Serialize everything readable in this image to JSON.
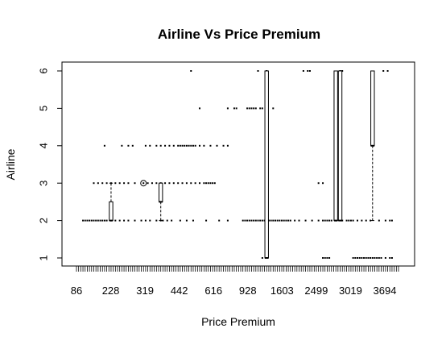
{
  "chart_data": {
    "type": "scatter",
    "title": "Airline Vs Price Premium",
    "xlabel": "Price Premium",
    "ylabel": "Airline",
    "ylim": [
      1,
      6
    ],
    "yticks": [
      "1",
      "2",
      "3",
      "4",
      "5",
      "6"
    ],
    "x_categories_labeled": [
      "86",
      "228",
      "319",
      "442",
      "616",
      "928",
      "1603",
      "2499",
      "3019",
      "3694"
    ],
    "x_category_count": 150,
    "points": [
      {
        "c": 4,
        "y": 2
      },
      {
        "c": 5,
        "y": 2
      },
      {
        "c": 6,
        "y": 2
      },
      {
        "c": 7,
        "y": 2
      },
      {
        "c": 8,
        "y": 2
      },
      {
        "c": 9,
        "y": 2
      },
      {
        "c": 10,
        "y": 2
      },
      {
        "c": 11,
        "y": 2
      },
      {
        "c": 12,
        "y": 2
      },
      {
        "c": 13,
        "y": 2
      },
      {
        "c": 14,
        "y": 2
      },
      {
        "c": 15,
        "y": 2
      },
      {
        "c": 17,
        "y": 2
      },
      {
        "c": 19,
        "y": 2
      },
      {
        "c": 21,
        "y": 2
      },
      {
        "c": 23,
        "y": 2
      },
      {
        "c": 25,
        "y": 2
      },
      {
        "c": 28,
        "y": 2
      },
      {
        "c": 31,
        "y": 2
      },
      {
        "c": 33,
        "y": 2
      },
      {
        "c": 35,
        "y": 2
      },
      {
        "c": 38,
        "y": 2
      },
      {
        "c": 40,
        "y": 2
      },
      {
        "c": 41,
        "y": 2
      },
      {
        "c": 43,
        "y": 2
      },
      {
        "c": 45,
        "y": 2
      },
      {
        "c": 49,
        "y": 2
      },
      {
        "c": 52,
        "y": 2
      },
      {
        "c": 55,
        "y": 2
      },
      {
        "c": 61,
        "y": 2
      },
      {
        "c": 67,
        "y": 2
      },
      {
        "c": 71,
        "y": 2
      },
      {
        "c": 78,
        "y": 2
      },
      {
        "c": 79,
        "y": 2
      },
      {
        "c": 80,
        "y": 2
      },
      {
        "c": 81,
        "y": 2
      },
      {
        "c": 82,
        "y": 2
      },
      {
        "c": 83,
        "y": 2
      },
      {
        "c": 84,
        "y": 2
      },
      {
        "c": 85,
        "y": 2
      },
      {
        "c": 86,
        "y": 2
      },
      {
        "c": 87,
        "y": 2
      },
      {
        "c": 88,
        "y": 2
      },
      {
        "c": 89,
        "y": 2
      },
      {
        "c": 90,
        "y": 2
      },
      {
        "c": 91,
        "y": 2
      },
      {
        "c": 92,
        "y": 2
      },
      {
        "c": 93,
        "y": 2
      },
      {
        "c": 94,
        "y": 2
      },
      {
        "c": 95,
        "y": 2
      },
      {
        "c": 96,
        "y": 2
      },
      {
        "c": 97,
        "y": 2
      },
      {
        "c": 98,
        "y": 2
      },
      {
        "c": 99,
        "y": 2
      },
      {
        "c": 100,
        "y": 2
      },
      {
        "c": 102,
        "y": 2
      },
      {
        "c": 104,
        "y": 2
      },
      {
        "c": 107,
        "y": 2
      },
      {
        "c": 110,
        "y": 2
      },
      {
        "c": 113,
        "y": 2
      },
      {
        "c": 115,
        "y": 2
      },
      {
        "c": 116,
        "y": 2
      },
      {
        "c": 117,
        "y": 2
      },
      {
        "c": 118,
        "y": 2
      },
      {
        "c": 119,
        "y": 2
      },
      {
        "c": 121,
        "y": 2
      },
      {
        "c": 124,
        "y": 2
      },
      {
        "c": 126,
        "y": 2
      },
      {
        "c": 127,
        "y": 2
      },
      {
        "c": 128,
        "y": 2
      },
      {
        "c": 129,
        "y": 2
      },
      {
        "c": 131,
        "y": 2
      },
      {
        "c": 133,
        "y": 2
      },
      {
        "c": 135,
        "y": 2
      },
      {
        "c": 137,
        "y": 2
      },
      {
        "c": 141,
        "y": 2
      },
      {
        "c": 144,
        "y": 2
      },
      {
        "c": 146,
        "y": 2
      },
      {
        "c": 147,
        "y": 2
      },
      {
        "c": 9,
        "y": 3
      },
      {
        "c": 11,
        "y": 3
      },
      {
        "c": 13,
        "y": 3
      },
      {
        "c": 15,
        "y": 3
      },
      {
        "c": 17,
        "y": 3
      },
      {
        "c": 19,
        "y": 3
      },
      {
        "c": 21,
        "y": 3
      },
      {
        "c": 23,
        "y": 3
      },
      {
        "c": 25,
        "y": 3
      },
      {
        "c": 28,
        "y": 3
      },
      {
        "c": 32,
        "y": 3
      },
      {
        "c": 34,
        "y": 3
      },
      {
        "c": 36,
        "y": 3
      },
      {
        "c": 38,
        "y": 3
      },
      {
        "c": 40,
        "y": 3
      },
      {
        "c": 42,
        "y": 3
      },
      {
        "c": 44,
        "y": 3
      },
      {
        "c": 46,
        "y": 3
      },
      {
        "c": 48,
        "y": 3
      },
      {
        "c": 50,
        "y": 3
      },
      {
        "c": 52,
        "y": 3
      },
      {
        "c": 54,
        "y": 3
      },
      {
        "c": 56,
        "y": 3
      },
      {
        "c": 58,
        "y": 3
      },
      {
        "c": 60,
        "y": 3
      },
      {
        "c": 61,
        "y": 3
      },
      {
        "c": 62,
        "y": 3
      },
      {
        "c": 63,
        "y": 3
      },
      {
        "c": 64,
        "y": 3
      },
      {
        "c": 65,
        "y": 3
      },
      {
        "c": 113,
        "y": 3
      },
      {
        "c": 115,
        "y": 3
      },
      {
        "c": 14,
        "y": 4
      },
      {
        "c": 22,
        "y": 4
      },
      {
        "c": 25,
        "y": 4
      },
      {
        "c": 27,
        "y": 4
      },
      {
        "c": 33,
        "y": 4
      },
      {
        "c": 35,
        "y": 4
      },
      {
        "c": 38,
        "y": 4
      },
      {
        "c": 40,
        "y": 4
      },
      {
        "c": 42,
        "y": 4
      },
      {
        "c": 44,
        "y": 4
      },
      {
        "c": 46,
        "y": 4
      },
      {
        "c": 48,
        "y": 4
      },
      {
        "c": 49,
        "y": 4
      },
      {
        "c": 50,
        "y": 4
      },
      {
        "c": 51,
        "y": 4
      },
      {
        "c": 52,
        "y": 4
      },
      {
        "c": 53,
        "y": 4
      },
      {
        "c": 54,
        "y": 4
      },
      {
        "c": 55,
        "y": 4
      },
      {
        "c": 56,
        "y": 4
      },
      {
        "c": 58,
        "y": 4
      },
      {
        "c": 60,
        "y": 4
      },
      {
        "c": 63,
        "y": 4
      },
      {
        "c": 66,
        "y": 4
      },
      {
        "c": 69,
        "y": 4
      },
      {
        "c": 71,
        "y": 4
      },
      {
        "c": 58,
        "y": 5
      },
      {
        "c": 71,
        "y": 5
      },
      {
        "c": 74,
        "y": 5
      },
      {
        "c": 75,
        "y": 5
      },
      {
        "c": 80,
        "y": 5
      },
      {
        "c": 81,
        "y": 5
      },
      {
        "c": 82,
        "y": 5
      },
      {
        "c": 83,
        "y": 5
      },
      {
        "c": 84,
        "y": 5
      },
      {
        "c": 86,
        "y": 5
      },
      {
        "c": 87,
        "y": 5
      },
      {
        "c": 92,
        "y": 5
      },
      {
        "c": 54,
        "y": 6
      },
      {
        "c": 85,
        "y": 6
      },
      {
        "c": 89,
        "y": 6
      },
      {
        "c": 106,
        "y": 6
      },
      {
        "c": 108,
        "y": 6
      },
      {
        "c": 109,
        "y": 6
      },
      {
        "c": 123,
        "y": 6
      },
      {
        "c": 124,
        "y": 6
      },
      {
        "c": 143,
        "y": 6
      },
      {
        "c": 145,
        "y": 6
      },
      {
        "c": 87,
        "y": 1
      },
      {
        "c": 115,
        "y": 1
      },
      {
        "c": 116,
        "y": 1
      },
      {
        "c": 117,
        "y": 1
      },
      {
        "c": 118,
        "y": 1
      },
      {
        "c": 129,
        "y": 1
      },
      {
        "c": 130,
        "y": 1
      },
      {
        "c": 131,
        "y": 1
      },
      {
        "c": 132,
        "y": 1
      },
      {
        "c": 133,
        "y": 1
      },
      {
        "c": 134,
        "y": 1
      },
      {
        "c": 135,
        "y": 1
      },
      {
        "c": 136,
        "y": 1
      },
      {
        "c": 137,
        "y": 1
      },
      {
        "c": 138,
        "y": 1
      },
      {
        "c": 139,
        "y": 1
      },
      {
        "c": 140,
        "y": 1
      },
      {
        "c": 141,
        "y": 1
      },
      {
        "c": 142,
        "y": 1
      },
      {
        "c": 144,
        "y": 1
      },
      {
        "c": 146,
        "y": 1
      },
      {
        "c": 147,
        "y": 1
      }
    ],
    "boxes": [
      {
        "c": 17,
        "min": 2,
        "q1": 2,
        "median": 2,
        "q3": 2.5,
        "max": 3
      },
      {
        "c": 40,
        "min": 2,
        "q1": 2.5,
        "median": 2.5,
        "q3": 3,
        "max": 3
      },
      {
        "c": 89,
        "min": 1,
        "q1": 1,
        "median": 1,
        "q3": 6,
        "max": 6
      },
      {
        "c": 121,
        "min": 2,
        "q1": 2,
        "median": 2,
        "q3": 6,
        "max": 6
      },
      {
        "c": 123,
        "min": 2,
        "q1": 2,
        "median": 2,
        "q3": 6,
        "max": 6
      },
      {
        "c": 138,
        "min": 2,
        "q1": 4,
        "median": 4,
        "q3": 6,
        "max": 6
      }
    ],
    "outliers": [
      {
        "c": 32,
        "y": 3
      }
    ],
    "grid": false,
    "legend": "none"
  }
}
